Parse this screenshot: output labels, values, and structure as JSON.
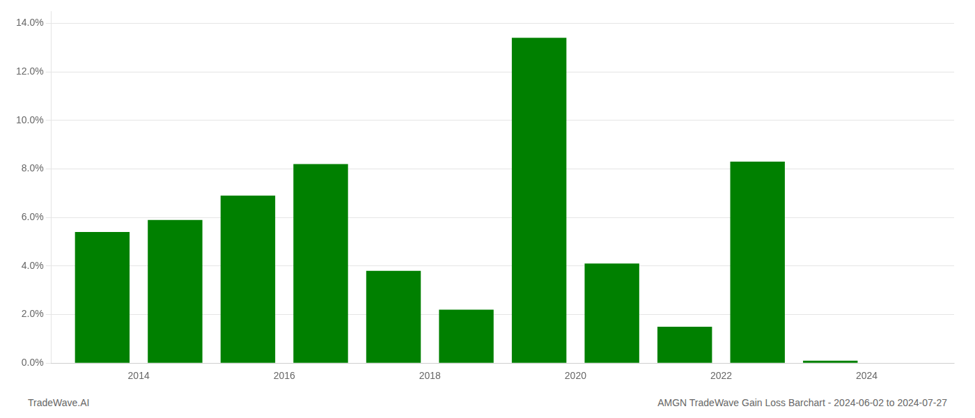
{
  "chart_data": {
    "type": "bar",
    "title": "AMGN TradeWave Gain Loss Barchart - 2024-06-02 to 2024-07-27",
    "annotations": [
      "TradeWave.AI"
    ],
    "x": [
      2013,
      2014,
      2015,
      2016,
      2017,
      2018,
      2019,
      2020,
      2021,
      2022,
      2023
    ],
    "values": [
      0.054,
      0.059,
      0.069,
      0.082,
      0.038,
      0.022,
      0.134,
      0.041,
      0.015,
      0.083,
      0.001
    ],
    "color": "#008000",
    "xlim": [
      2012.3,
      2024.7
    ],
    "xticks": [
      {
        "value": 2013.5,
        "label": "2014"
      },
      {
        "value": 2015.5,
        "label": "2016"
      },
      {
        "value": 2017.5,
        "label": "2018"
      },
      {
        "value": 2019.5,
        "label": "2020"
      },
      {
        "value": 2021.5,
        "label": "2022"
      },
      {
        "value": 2023.5,
        "label": "2024"
      }
    ],
    "ylim": [
      0,
      0.145
    ],
    "yticks": [
      {
        "value": 0.0,
        "label": "0.0%"
      },
      {
        "value": 0.02,
        "label": "2.0%"
      },
      {
        "value": 0.04,
        "label": "4.0%"
      },
      {
        "value": 0.06,
        "label": "6.0%"
      },
      {
        "value": 0.08,
        "label": "8.0%"
      },
      {
        "value": 0.1,
        "label": "10.0%"
      },
      {
        "value": 0.12,
        "label": "12.0%"
      },
      {
        "value": 0.14,
        "label": "14.0%"
      }
    ],
    "grid": true
  }
}
